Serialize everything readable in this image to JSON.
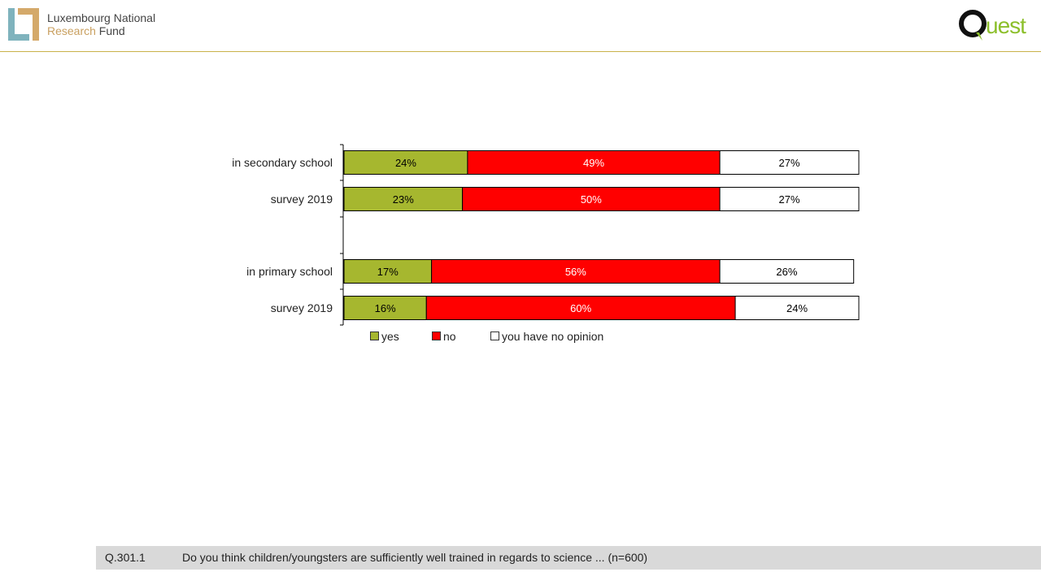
{
  "header": {
    "fnr_line1": "Luxembourg National",
    "fnr_line2a": "Research",
    "fnr_line2b": " Fund",
    "quest_text": "uest"
  },
  "colors": {
    "yes": "#a6b72f",
    "no": "#ff0000",
    "no_opinion": "#ffffff",
    "accent_line": "#c9b24a"
  },
  "chart_data": {
    "type": "bar",
    "orientation": "horizontal",
    "stacked": true,
    "percent": true,
    "categories": [
      "in secondary school",
      "survey 2019",
      "",
      "in primary school",
      "survey 2019"
    ],
    "series": [
      {
        "name": "yes",
        "color": "#a6b72f",
        "values": [
          24,
          23,
          null,
          17,
          16
        ]
      },
      {
        "name": "no",
        "color": "#ff0000",
        "values": [
          49,
          50,
          null,
          56,
          60
        ]
      },
      {
        "name": "you have no opinion",
        "color": "#ffffff",
        "values": [
          27,
          27,
          null,
          26,
          24
        ]
      }
    ],
    "data_labels": [
      [
        "24%",
        "49%",
        "27%"
      ],
      [
        "23%",
        "50%",
        "27%"
      ],
      null,
      [
        "17%",
        "56%",
        "26%"
      ],
      [
        "16%",
        "60%",
        "24%"
      ]
    ],
    "xlim": [
      0,
      100
    ],
    "legend_position": "bottom-left"
  },
  "footer": {
    "question_id": "Q.301.1",
    "question_text": "Do you think children/youngsters are sufficiently well trained in regards to science  ... (n=600)"
  }
}
